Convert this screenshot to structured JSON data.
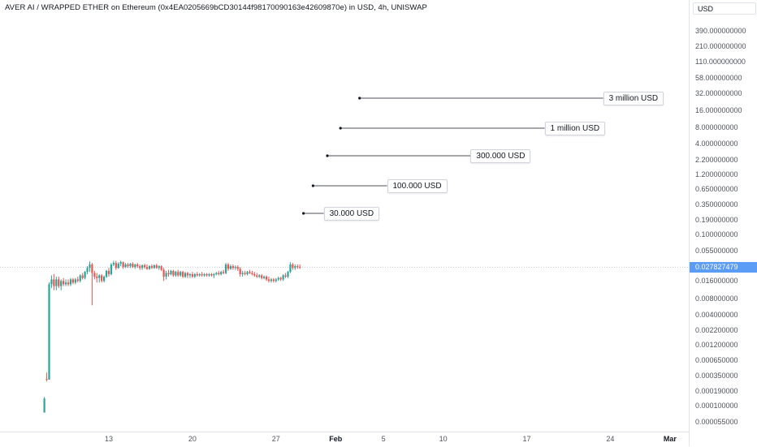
{
  "header": {
    "title": "AVER AI / WRAPPED ETHER on Ethereum (0x4EA0205669bCD30144f98170090163e42609870e) in USD, 4h, UNISWAP"
  },
  "price_scale": {
    "currency": "USD",
    "last_price": "0.027827479",
    "last_price_value": 0.027827479,
    "ticks": [
      "390.000000000",
      "210.000000000",
      "110.000000000",
      "58.000000000",
      "32.000000000",
      "16.000000000",
      "8.000000000",
      "4.000000000",
      "2.200000000",
      "1.200000000",
      "0.650000000",
      "0.350000000",
      "0.190000000",
      "0.100000000",
      "0.055000000",
      "0.016000000",
      "0.008000000",
      "0.004000000",
      "0.002200000",
      "0.001200000",
      "0.000650000",
      "0.000350000",
      "0.000190000",
      "0.000100000",
      "0.000055000"
    ]
  },
  "time_scale": {
    "ticks": [
      {
        "label": "13",
        "day": 13,
        "bold": false
      },
      {
        "label": "20",
        "day": 20,
        "bold": false
      },
      {
        "label": "27",
        "day": 27,
        "bold": false
      },
      {
        "label": "Feb",
        "day": 32,
        "bold": true
      },
      {
        "label": "5",
        "day": 36,
        "bold": false
      },
      {
        "label": "10",
        "day": 41,
        "bold": false
      },
      {
        "label": "17",
        "day": 48,
        "bold": false
      },
      {
        "label": "24",
        "day": 55,
        "bold": false
      },
      {
        "label": "Mar",
        "day": 60,
        "bold": true
      }
    ]
  },
  "annotations": [
    {
      "label": "30.000 USD",
      "from_day": 29.3,
      "to_day": 31.0
    },
    {
      "label": "100.000 USD",
      "from_day": 30.1,
      "to_day": 36.3
    },
    {
      "label": "300.000 USD",
      "from_day": 31.3,
      "to_day": 43.3
    },
    {
      "label": "1 million USD",
      "from_day": 32.4,
      "to_day": 49.5
    },
    {
      "label": "3 million USD",
      "from_day": 34.0,
      "to_day": 54.4
    }
  ],
  "colors": {
    "up": "#26a69a",
    "down": "#ef5350",
    "accent": "#5b9cf6"
  },
  "chart_data": {
    "type": "candlestick",
    "interval": "4h",
    "exchange": "UNISWAP",
    "y_scale": "log",
    "ylim": [
      5.5e-05,
      390
    ],
    "x_unit": "January day number",
    "candles": [
      {
        "x": 7.6,
        "o": 8e-05,
        "h": 0.00015,
        "l": 8e-05,
        "c": 0.00014
      },
      {
        "x": 7.8,
        "o": 0.00031,
        "h": 0.0004,
        "l": 0.00028,
        "c": 0.0003
      },
      {
        "x": 8.0,
        "o": 0.0003,
        "h": 0.015,
        "l": 0.0003,
        "c": 0.014
      },
      {
        "x": 8.2,
        "o": 0.014,
        "h": 0.02,
        "l": 0.012,
        "c": 0.017
      },
      {
        "x": 8.4,
        "o": 0.017,
        "h": 0.021,
        "l": 0.011,
        "c": 0.013
      },
      {
        "x": 8.6,
        "o": 0.013,
        "h": 0.019,
        "l": 0.011,
        "c": 0.017
      },
      {
        "x": 8.8,
        "o": 0.017,
        "h": 0.019,
        "l": 0.012,
        "c": 0.013
      },
      {
        "x": 9.0,
        "o": 0.013,
        "h": 0.017,
        "l": 0.011,
        "c": 0.016
      },
      {
        "x": 9.2,
        "o": 0.016,
        "h": 0.018,
        "l": 0.013,
        "c": 0.014
      },
      {
        "x": 9.4,
        "o": 0.014,
        "h": 0.017,
        "l": 0.013,
        "c": 0.015
      },
      {
        "x": 9.6,
        "o": 0.015,
        "h": 0.017,
        "l": 0.013,
        "c": 0.014
      },
      {
        "x": 9.8,
        "o": 0.014,
        "h": 0.018,
        "l": 0.013,
        "c": 0.017
      },
      {
        "x": 10.0,
        "o": 0.017,
        "h": 0.018,
        "l": 0.014,
        "c": 0.015
      },
      {
        "x": 10.2,
        "o": 0.015,
        "h": 0.018,
        "l": 0.014,
        "c": 0.017
      },
      {
        "x": 10.4,
        "o": 0.017,
        "h": 0.019,
        "l": 0.015,
        "c": 0.016
      },
      {
        "x": 10.6,
        "o": 0.016,
        "h": 0.021,
        "l": 0.015,
        "c": 0.02
      },
      {
        "x": 10.8,
        "o": 0.02,
        "h": 0.022,
        "l": 0.017,
        "c": 0.018
      },
      {
        "x": 11.0,
        "o": 0.018,
        "h": 0.024,
        "l": 0.017,
        "c": 0.023
      },
      {
        "x": 11.2,
        "o": 0.023,
        "h": 0.029,
        "l": 0.021,
        "c": 0.027
      },
      {
        "x": 11.4,
        "o": 0.027,
        "h": 0.035,
        "l": 0.023,
        "c": 0.031
      },
      {
        "x": 11.6,
        "o": 0.031,
        "h": 0.033,
        "l": 0.006,
        "c": 0.022
      },
      {
        "x": 11.8,
        "o": 0.022,
        "h": 0.024,
        "l": 0.017,
        "c": 0.019
      },
      {
        "x": 12.0,
        "o": 0.019,
        "h": 0.022,
        "l": 0.015,
        "c": 0.018
      },
      {
        "x": 12.2,
        "o": 0.018,
        "h": 0.021,
        "l": 0.015,
        "c": 0.02
      },
      {
        "x": 12.4,
        "o": 0.02,
        "h": 0.021,
        "l": 0.015,
        "c": 0.016
      },
      {
        "x": 12.6,
        "o": 0.016,
        "h": 0.02,
        "l": 0.015,
        "c": 0.019
      },
      {
        "x": 12.8,
        "o": 0.019,
        "h": 0.025,
        "l": 0.018,
        "c": 0.024
      },
      {
        "x": 13.0,
        "o": 0.024,
        "h": 0.027,
        "l": 0.019,
        "c": 0.021
      },
      {
        "x": 13.2,
        "o": 0.021,
        "h": 0.033,
        "l": 0.02,
        "c": 0.031
      },
      {
        "x": 13.4,
        "o": 0.031,
        "h": 0.036,
        "l": 0.029,
        "c": 0.033
      },
      {
        "x": 13.6,
        "o": 0.033,
        "h": 0.036,
        "l": 0.025,
        "c": 0.027
      },
      {
        "x": 13.8,
        "o": 0.027,
        "h": 0.034,
        "l": 0.026,
        "c": 0.032
      },
      {
        "x": 14.0,
        "o": 0.032,
        "h": 0.036,
        "l": 0.029,
        "c": 0.034
      },
      {
        "x": 14.2,
        "o": 0.034,
        "h": 0.035,
        "l": 0.026,
        "c": 0.028
      },
      {
        "x": 14.4,
        "o": 0.028,
        "h": 0.033,
        "l": 0.027,
        "c": 0.031
      },
      {
        "x": 14.6,
        "o": 0.031,
        "h": 0.033,
        "l": 0.027,
        "c": 0.029
      },
      {
        "x": 14.8,
        "o": 0.029,
        "h": 0.033,
        "l": 0.027,
        "c": 0.032
      },
      {
        "x": 15.0,
        "o": 0.032,
        "h": 0.034,
        "l": 0.027,
        "c": 0.028
      },
      {
        "x": 15.2,
        "o": 0.028,
        "h": 0.032,
        "l": 0.026,
        "c": 0.031
      },
      {
        "x": 15.4,
        "o": 0.031,
        "h": 0.033,
        "l": 0.027,
        "c": 0.029
      },
      {
        "x": 15.6,
        "o": 0.029,
        "h": 0.031,
        "l": 0.025,
        "c": 0.027
      },
      {
        "x": 15.8,
        "o": 0.027,
        "h": 0.031,
        "l": 0.025,
        "c": 0.03
      },
      {
        "x": 16.0,
        "o": 0.03,
        "h": 0.032,
        "l": 0.026,
        "c": 0.028
      },
      {
        "x": 16.2,
        "o": 0.028,
        "h": 0.031,
        "l": 0.025,
        "c": 0.026
      },
      {
        "x": 16.4,
        "o": 0.026,
        "h": 0.03,
        "l": 0.025,
        "c": 0.029
      },
      {
        "x": 16.6,
        "o": 0.029,
        "h": 0.031,
        "l": 0.026,
        "c": 0.027
      },
      {
        "x": 16.8,
        "o": 0.027,
        "h": 0.031,
        "l": 0.026,
        "c": 0.03
      },
      {
        "x": 17.0,
        "o": 0.03,
        "h": 0.032,
        "l": 0.026,
        "c": 0.027
      },
      {
        "x": 17.2,
        "o": 0.027,
        "h": 0.03,
        "l": 0.025,
        "c": 0.029
      },
      {
        "x": 17.4,
        "o": 0.029,
        "h": 0.03,
        "l": 0.024,
        "c": 0.025
      },
      {
        "x": 17.6,
        "o": 0.025,
        "h": 0.027,
        "l": 0.016,
        "c": 0.019
      },
      {
        "x": 17.8,
        "o": 0.019,
        "h": 0.024,
        "l": 0.017,
        "c": 0.022
      },
      {
        "x": 18.0,
        "o": 0.022,
        "h": 0.025,
        "l": 0.019,
        "c": 0.021
      },
      {
        "x": 18.2,
        "o": 0.021,
        "h": 0.025,
        "l": 0.02,
        "c": 0.024
      },
      {
        "x": 18.4,
        "o": 0.024,
        "h": 0.025,
        "l": 0.019,
        "c": 0.02
      },
      {
        "x": 18.6,
        "o": 0.02,
        "h": 0.024,
        "l": 0.019,
        "c": 0.023
      },
      {
        "x": 18.8,
        "o": 0.023,
        "h": 0.025,
        "l": 0.019,
        "c": 0.02
      },
      {
        "x": 19.0,
        "o": 0.02,
        "h": 0.024,
        "l": 0.019,
        "c": 0.023
      },
      {
        "x": 19.2,
        "o": 0.023,
        "h": 0.024,
        "l": 0.018,
        "c": 0.019
      },
      {
        "x": 19.4,
        "o": 0.019,
        "h": 0.023,
        "l": 0.018,
        "c": 0.022
      },
      {
        "x": 19.6,
        "o": 0.022,
        "h": 0.023,
        "l": 0.018,
        "c": 0.02
      },
      {
        "x": 19.8,
        "o": 0.02,
        "h": 0.022,
        "l": 0.018,
        "c": 0.021
      },
      {
        "x": 20.0,
        "o": 0.021,
        "h": 0.023,
        "l": 0.018,
        "c": 0.019
      },
      {
        "x": 20.2,
        "o": 0.019,
        "h": 0.022,
        "l": 0.018,
        "c": 0.021
      },
      {
        "x": 20.4,
        "o": 0.021,
        "h": 0.023,
        "l": 0.019,
        "c": 0.02
      },
      {
        "x": 20.6,
        "o": 0.02,
        "h": 0.022,
        "l": 0.019,
        "c": 0.021
      },
      {
        "x": 20.8,
        "o": 0.021,
        "h": 0.023,
        "l": 0.019,
        "c": 0.02
      },
      {
        "x": 21.0,
        "o": 0.02,
        "h": 0.022,
        "l": 0.019,
        "c": 0.021
      },
      {
        "x": 21.2,
        "o": 0.021,
        "h": 0.022,
        "l": 0.019,
        "c": 0.02
      },
      {
        "x": 21.4,
        "o": 0.02,
        "h": 0.022,
        "l": 0.019,
        "c": 0.021
      },
      {
        "x": 21.6,
        "o": 0.021,
        "h": 0.022,
        "l": 0.019,
        "c": 0.02
      },
      {
        "x": 21.8,
        "o": 0.02,
        "h": 0.022,
        "l": 0.018,
        "c": 0.021
      },
      {
        "x": 22.0,
        "o": 0.021,
        "h": 0.023,
        "l": 0.02,
        "c": 0.022
      },
      {
        "x": 22.2,
        "o": 0.022,
        "h": 0.024,
        "l": 0.02,
        "c": 0.021
      },
      {
        "x": 22.4,
        "o": 0.021,
        "h": 0.024,
        "l": 0.02,
        "c": 0.023
      },
      {
        "x": 22.6,
        "o": 0.023,
        "h": 0.025,
        "l": 0.021,
        "c": 0.022
      },
      {
        "x": 22.8,
        "o": 0.022,
        "h": 0.033,
        "l": 0.021,
        "c": 0.031
      },
      {
        "x": 23.0,
        "o": 0.031,
        "h": 0.033,
        "l": 0.024,
        "c": 0.026
      },
      {
        "x": 23.2,
        "o": 0.026,
        "h": 0.031,
        "l": 0.025,
        "c": 0.029
      },
      {
        "x": 23.4,
        "o": 0.029,
        "h": 0.031,
        "l": 0.025,
        "c": 0.027
      },
      {
        "x": 23.6,
        "o": 0.027,
        "h": 0.03,
        "l": 0.025,
        "c": 0.028
      },
      {
        "x": 23.8,
        "o": 0.028,
        "h": 0.03,
        "l": 0.024,
        "c": 0.026
      },
      {
        "x": 24.0,
        "o": 0.026,
        "h": 0.028,
        "l": 0.019,
        "c": 0.021
      },
      {
        "x": 24.2,
        "o": 0.021,
        "h": 0.024,
        "l": 0.019,
        "c": 0.022
      },
      {
        "x": 24.4,
        "o": 0.022,
        "h": 0.024,
        "l": 0.02,
        "c": 0.021
      },
      {
        "x": 24.6,
        "o": 0.021,
        "h": 0.024,
        "l": 0.02,
        "c": 0.023
      },
      {
        "x": 24.8,
        "o": 0.023,
        "h": 0.025,
        "l": 0.021,
        "c": 0.022
      },
      {
        "x": 25.0,
        "o": 0.022,
        "h": 0.024,
        "l": 0.02,
        "c": 0.021
      },
      {
        "x": 25.2,
        "o": 0.021,
        "h": 0.023,
        "l": 0.019,
        "c": 0.02
      },
      {
        "x": 25.4,
        "o": 0.02,
        "h": 0.022,
        "l": 0.018,
        "c": 0.019
      },
      {
        "x": 25.6,
        "o": 0.019,
        "h": 0.021,
        "l": 0.018,
        "c": 0.02
      },
      {
        "x": 25.8,
        "o": 0.02,
        "h": 0.021,
        "l": 0.017,
        "c": 0.018
      },
      {
        "x": 26.0,
        "o": 0.018,
        "h": 0.02,
        "l": 0.017,
        "c": 0.019
      },
      {
        "x": 26.2,
        "o": 0.019,
        "h": 0.02,
        "l": 0.016,
        "c": 0.017
      },
      {
        "x": 26.4,
        "o": 0.017,
        "h": 0.019,
        "l": 0.015,
        "c": 0.016
      },
      {
        "x": 26.6,
        "o": 0.016,
        "h": 0.018,
        "l": 0.015,
        "c": 0.017
      },
      {
        "x": 26.8,
        "o": 0.017,
        "h": 0.018,
        "l": 0.015,
        "c": 0.016
      },
      {
        "x": 27.0,
        "o": 0.016,
        "h": 0.018,
        "l": 0.015,
        "c": 0.017
      },
      {
        "x": 27.2,
        "o": 0.017,
        "h": 0.019,
        "l": 0.016,
        "c": 0.018
      },
      {
        "x": 27.4,
        "o": 0.018,
        "h": 0.019,
        "l": 0.016,
        "c": 0.017
      },
      {
        "x": 27.6,
        "o": 0.017,
        "h": 0.021,
        "l": 0.016,
        "c": 0.02
      },
      {
        "x": 27.8,
        "o": 0.02,
        "h": 0.022,
        "l": 0.018,
        "c": 0.019
      },
      {
        "x": 28.0,
        "o": 0.019,
        "h": 0.024,
        "l": 0.018,
        "c": 0.023
      },
      {
        "x": 28.2,
        "o": 0.023,
        "h": 0.034,
        "l": 0.022,
        "c": 0.031
      },
      {
        "x": 28.4,
        "o": 0.031,
        "h": 0.033,
        "l": 0.025,
        "c": 0.027
      },
      {
        "x": 28.6,
        "o": 0.027,
        "h": 0.031,
        "l": 0.025,
        "c": 0.029
      },
      {
        "x": 28.8,
        "o": 0.029,
        "h": 0.031,
        "l": 0.026,
        "c": 0.028
      },
      {
        "x": 29.0,
        "o": 0.028,
        "h": 0.031,
        "l": 0.026,
        "c": 0.0278
      }
    ]
  }
}
